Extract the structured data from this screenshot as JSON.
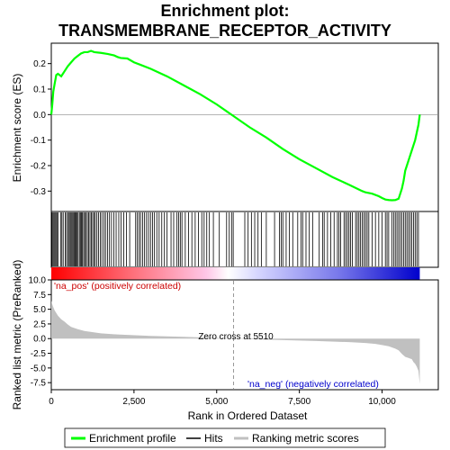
{
  "chart_data": {
    "type": "line",
    "title": "Enrichment plot:\nTRANSMEMBRANE_RECEPTOR_ACTIVITY",
    "title_lines": [
      "Enrichment plot:",
      "TRANSMEMBRANE_RECEPTOR_ACTIVITY"
    ],
    "xlabel": "Rank in Ordered Dataset",
    "top_panel": {
      "ylabel": "Enrichment score (ES)",
      "ylim": [
        -0.38,
        0.28
      ],
      "yticks": [
        0.2,
        0.1,
        0.0,
        -0.1,
        -0.2,
        -0.3
      ],
      "ytick_labels": [
        "0.2",
        "0.1",
        "0.0",
        "-0.1",
        "-0.2",
        "-0.3"
      ],
      "grid": false,
      "series": [
        {
          "name": "Enrichment profile",
          "color": "#00ff00",
          "x": [
            0,
            30,
            60,
            100,
            150,
            200,
            250,
            300,
            350,
            400,
            450,
            500,
            600,
            700,
            800,
            900,
            1000,
            1100,
            1200,
            1300,
            1500,
            1700,
            1900,
            2000,
            2100,
            2300,
            2500,
            2700,
            3000,
            3500,
            4000,
            4500,
            5000,
            5500,
            6000,
            6500,
            7000,
            7500,
            8000,
            8500,
            9000,
            9400,
            9500,
            9700,
            9900,
            10000,
            10100,
            10200,
            10300,
            10400,
            10500,
            10550,
            10600,
            10650,
            10700,
            10750,
            10800,
            10850,
            10900,
            10950,
            11000,
            11050,
            11100,
            11140
          ],
          "y": [
            0.0,
            0.04,
            0.09,
            0.12,
            0.155,
            0.16,
            0.155,
            0.15,
            0.16,
            0.17,
            0.18,
            0.19,
            0.205,
            0.22,
            0.23,
            0.24,
            0.245,
            0.245,
            0.25,
            0.245,
            0.242,
            0.238,
            0.232,
            0.226,
            0.222,
            0.22,
            0.205,
            0.195,
            0.18,
            0.15,
            0.115,
            0.08,
            0.04,
            -0.005,
            -0.05,
            -0.09,
            -0.135,
            -0.175,
            -0.21,
            -0.245,
            -0.275,
            -0.3,
            -0.305,
            -0.31,
            -0.32,
            -0.327,
            -0.333,
            -0.335,
            -0.336,
            -0.335,
            -0.33,
            -0.31,
            -0.29,
            -0.26,
            -0.22,
            -0.2,
            -0.18,
            -0.16,
            -0.14,
            -0.12,
            -0.1,
            -0.07,
            -0.04,
            0.0
          ]
        }
      ]
    },
    "hits_panel": {
      "legend_label": "Hits",
      "hit_positions": [
        20,
        50,
        80,
        110,
        140,
        170,
        200,
        280,
        320,
        360,
        420,
        460,
        500,
        540,
        570,
        600,
        630,
        660,
        690,
        720,
        750,
        780,
        810,
        850,
        880,
        910,
        940,
        980,
        1010,
        1050,
        1090,
        1130,
        1170,
        1210,
        1250,
        1290,
        1330,
        1380,
        1430,
        1480,
        1530,
        1590,
        1640,
        1700,
        1760,
        1820,
        1890,
        1960,
        2040,
        2110,
        2190,
        2270,
        2370,
        2550,
        2600,
        2650,
        2700,
        2760,
        2820,
        2880,
        2940,
        3000,
        3060,
        3120,
        3190,
        3260,
        3340,
        3420,
        3500,
        3620,
        3700,
        3800,
        3850,
        3900,
        3950,
        4050,
        4150,
        4250,
        4350,
        4450,
        4550,
        4620,
        4700,
        4780,
        4900,
        5080,
        5300,
        5380,
        5450,
        5500,
        5850,
        5950,
        6050,
        6150,
        6250,
        6350,
        6500,
        6750,
        6900,
        6950,
        7000,
        7100,
        7200,
        7300,
        7450,
        7550,
        7600,
        7700,
        7800,
        7900,
        8100,
        8200,
        8250,
        8350,
        8450,
        8550,
        8650,
        8700,
        8750,
        8850,
        8900,
        8950,
        9000,
        9050,
        9100,
        9200,
        9250,
        9300,
        9350,
        9400,
        9450,
        9500,
        9550,
        9600,
        9700,
        9800,
        9900,
        10000,
        10100,
        10150,
        10200,
        10300,
        10350,
        10400,
        10450,
        10500,
        10550,
        10600,
        10650,
        10700,
        10750,
        10800,
        10850,
        10900,
        10950,
        11000,
        11050,
        11100
      ]
    },
    "rank_panel": {
      "ylabel": "Ranked list metric (PreRanked)",
      "legend_label": "Ranking metric scores",
      "ylim": [
        -8.7,
        10.0
      ],
      "yticks": [
        10.0,
        7.5,
        5.0,
        2.5,
        0.0,
        -2.5,
        -5.0,
        -7.5
      ],
      "ytick_labels": [
        "10.0",
        "7.5",
        "5.0",
        "2.5",
        "0.0",
        "-2.5",
        "-5.0",
        "-7.5"
      ],
      "x": [
        0,
        20,
        50,
        100,
        200,
        300,
        400,
        500,
        600,
        800,
        1000,
        1500,
        2000,
        3000,
        4000,
        5000,
        5510,
        6000,
        7000,
        8000,
        9000,
        9500,
        9800,
        10000,
        10200,
        10400,
        10500,
        10600,
        10700,
        10800,
        10900,
        10950,
        11000,
        11050,
        11100,
        11140
      ],
      "values": [
        6.5,
        6.0,
        5.5,
        4.8,
        3.9,
        3.3,
        2.9,
        2.4,
        2.0,
        1.6,
        1.3,
        0.9,
        0.7,
        0.45,
        0.3,
        0.12,
        0.0,
        -0.1,
        -0.25,
        -0.4,
        -0.6,
        -0.75,
        -0.9,
        -1.1,
        -1.3,
        -1.7,
        -2.0,
        -2.6,
        -3.1,
        -3.3,
        -3.5,
        -4.0,
        -4.3,
        -4.8,
        -5.5,
        -7.7
      ],
      "annotations": [
        {
          "text": "'na_pos' (positively correlated)",
          "color": "#cc0000"
        },
        {
          "text": "Zero cross at 5510",
          "color": "#000000"
        },
        {
          "text": "'na_neg' (negatively correlated)",
          "color": "#0000cc"
        }
      ]
    },
    "xlim": [
      0,
      11700
    ],
    "xticks": [
      0,
      2500,
      5000,
      7500,
      10000
    ],
    "xtick_labels": [
      "0",
      "2,500",
      "5,000",
      "7,500",
      "10,000"
    ],
    "zero_cross": 5510,
    "n_genes": 11140,
    "legend": {
      "placement": "bottom",
      "entries": [
        {
          "label": "Enrichment profile",
          "color": "#00ff00"
        },
        {
          "label": "Hits",
          "color": "#000000"
        },
        {
          "label": "Ranking metric scores",
          "color": "#c0c0c0"
        }
      ]
    }
  }
}
